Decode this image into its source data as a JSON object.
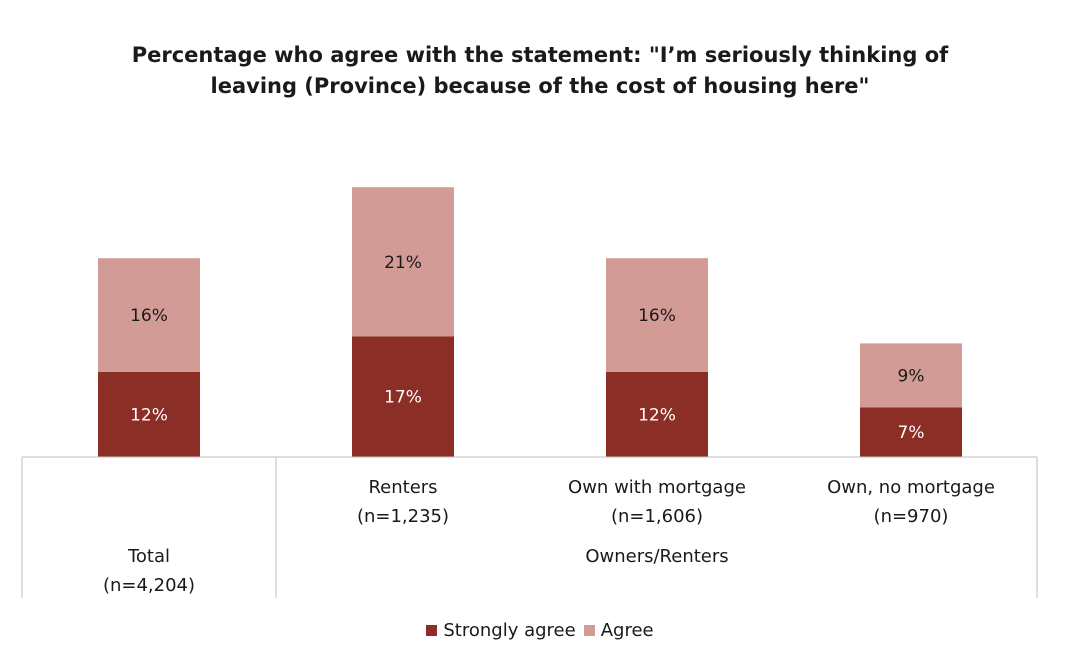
{
  "chart_data": {
    "type": "bar",
    "stacked": true,
    "title_lines": [
      "Percentage who agree with the statement: \"I’m seriously thinking of",
      "leaving (Province) because of the cost of housing here\""
    ],
    "categories": [
      "Total\n(n=4,204)",
      "Renters\n(n=1,235)",
      "Own with mortgage\n(n=1,606)",
      "Own, no mortgage\n(n=970)"
    ],
    "category_labels": [
      [
        "Total",
        "(n=4,204)"
      ],
      [
        "Renters",
        "(n=1,235)"
      ],
      [
        "Own with mortgage",
        "(n=1,606)"
      ],
      [
        "Own, no mortgage",
        "(n=970)"
      ]
    ],
    "group_label": "Owners/Renters",
    "series": [
      {
        "name": "Strongly agree",
        "color": "#8b2e26",
        "values": [
          12,
          17,
          12,
          7
        ],
        "labels": [
          "12%",
          "17%",
          "12%",
          "7%"
        ]
      },
      {
        "name": "Agree",
        "color": "#d29b96",
        "values": [
          16,
          21,
          16,
          9
        ],
        "labels": [
          "16%",
          "21%",
          "16%",
          "9%"
        ]
      }
    ],
    "ylim": [
      0,
      38
    ],
    "grid": false,
    "legend_position": "bottom"
  }
}
